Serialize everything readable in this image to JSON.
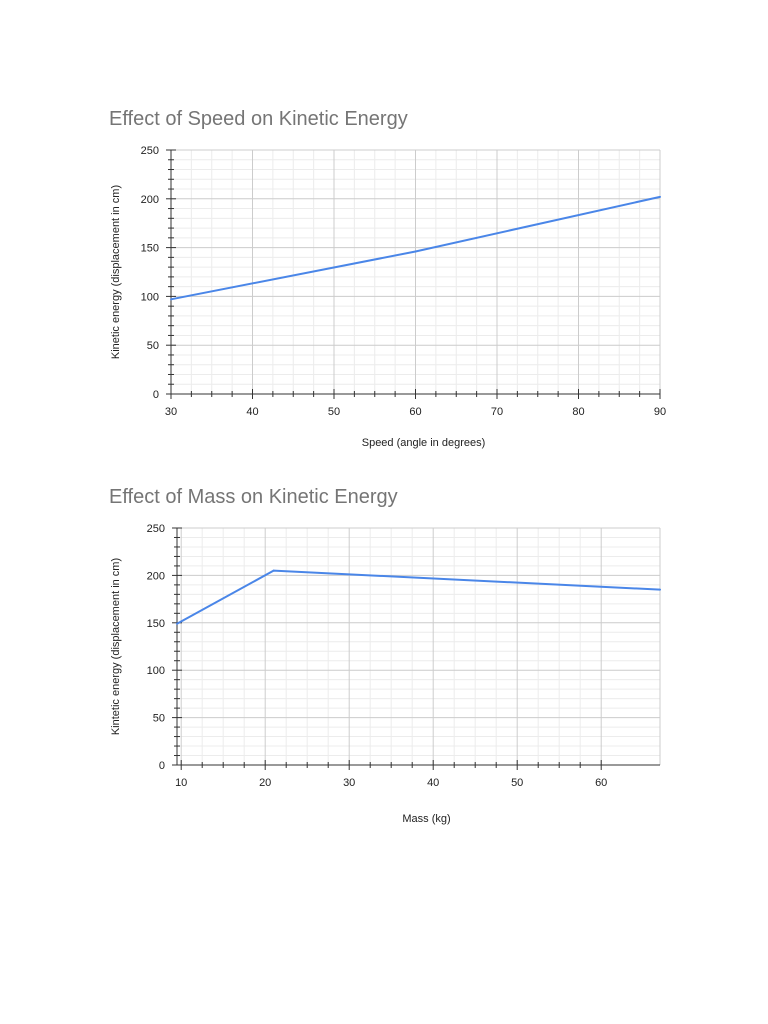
{
  "chart_data": [
    {
      "type": "line",
      "title": "Effect of Speed on Kinetic Energy",
      "xlabel": "Speed (angle in degrees)",
      "ylabel": "Kinetic energy (displacement in cm)",
      "xlim": [
        30,
        90
      ],
      "ylim": [
        0,
        250
      ],
      "xticks": [
        30,
        40,
        50,
        60,
        70,
        80,
        90
      ],
      "yticks": [
        0,
        50,
        100,
        150,
        200,
        250
      ],
      "grid": true,
      "series_color": "#4a86e8",
      "x": [
        30,
        60,
        90
      ],
      "values": [
        97,
        146,
        202
      ]
    },
    {
      "type": "line",
      "title": "Effect of Mass on Kinetic Energy",
      "xlabel": "Mass (kg)",
      "ylabel": "Kintetic energy (displacement in cm)",
      "xlim": [
        9.5,
        67
      ],
      "ylim": [
        0,
        250
      ],
      "xticks": [
        10,
        20,
        30,
        40,
        50,
        60
      ],
      "yticks": [
        0,
        50,
        100,
        150,
        200,
        250
      ],
      "grid": true,
      "series_color": "#4a86e8",
      "x": [
        9.5,
        21,
        67
      ],
      "values": [
        149,
        205,
        185
      ]
    }
  ]
}
